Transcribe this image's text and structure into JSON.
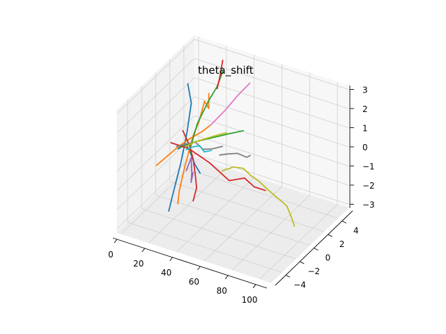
{
  "chart_data": {
    "type": "line",
    "projection": "3d",
    "title": "theta_shift",
    "xlabel": "",
    "ylabel": "",
    "zlabel": "",
    "grid": true,
    "legend": "none",
    "xlim": [
      -3,
      108
    ],
    "ylim": [
      -5.5,
      5.5
    ],
    "zlim": [
      -3.2,
      3.2
    ],
    "x_ticks": [
      0,
      20,
      40,
      60,
      80,
      100
    ],
    "y_ticks": [
      -4,
      -2,
      0,
      2,
      4
    ],
    "z_ticks": [
      -3,
      -2,
      -1,
      0,
      1,
      2,
      3
    ],
    "series": [
      {
        "color": "#1f77b4",
        "points": [
          [
            14,
            1.2,
            2.6
          ],
          [
            15,
            1.5,
            1.5
          ],
          [
            15,
            0.9,
            0.2
          ],
          [
            14,
            0.2,
            -1.2
          ],
          [
            13,
            -0.8,
            -2.6
          ],
          [
            14,
            -1.5,
            -3.1
          ]
        ]
      },
      {
        "color": "#1f77b4",
        "points": [
          [
            12,
            0.2,
            -0.5
          ],
          [
            16,
            0.6,
            -0.3
          ],
          [
            20,
            0.4,
            -0.6
          ],
          [
            25,
            0.0,
            -0.9
          ],
          [
            30,
            -0.2,
            -1.2
          ]
        ]
      },
      {
        "color": "#ff7f0e",
        "points": [
          [
            20,
            3.0,
            1.6
          ],
          [
            22,
            2.6,
            1.0
          ],
          [
            21,
            2.2,
            1.5
          ],
          [
            20,
            1.6,
            0.6
          ],
          [
            19,
            1.0,
            0.1
          ],
          [
            18,
            0.0,
            -1.2
          ],
          [
            18,
            -0.8,
            -2.2
          ],
          [
            18,
            -1.0,
            -2.8
          ]
        ]
      },
      {
        "color": "#ff7f0e",
        "points": [
          [
            0,
            -0.5,
            -1.4
          ],
          [
            6,
            -0.1,
            -0.9
          ],
          [
            12,
            0.3,
            -0.4
          ],
          [
            18,
            0.7,
            0.0
          ],
          [
            25,
            1.1,
            0.4
          ],
          [
            30,
            1.2,
            0.8
          ]
        ]
      },
      {
        "color": "#2ca02c",
        "points": [
          [
            26,
            3.8,
            2.6
          ],
          [
            25,
            3.2,
            2.0
          ],
          [
            24,
            2.2,
            1.6
          ],
          [
            22,
            1.0,
            0.8
          ],
          [
            21,
            0.2,
            -0.2
          ],
          [
            22,
            0.0,
            -0.4
          ]
        ]
      },
      {
        "color": "#2ca02c",
        "points": [
          [
            14,
            0.0,
            -0.3
          ],
          [
            24,
            0.4,
            0.1
          ],
          [
            34,
            0.8,
            0.4
          ],
          [
            44,
            1.2,
            0.7
          ],
          [
            52,
            1.6,
            0.9
          ]
        ]
      },
      {
        "color": "#d62728",
        "points": [
          [
            24,
            4.2,
            3.0
          ],
          [
            24,
            3.8,
            2.3
          ],
          [
            24,
            3.4,
            1.8
          ]
        ]
      },
      {
        "color": "#d62728",
        "points": [
          [
            14,
            0.5,
            0.4
          ],
          [
            20,
            0.3,
            -0.2
          ],
          [
            24,
            0.0,
            -0.7
          ],
          [
            28,
            -0.5,
            -1.2
          ],
          [
            31,
            -0.9,
            -1.7
          ],
          [
            30,
            -1.2,
            -2.3
          ]
        ]
      },
      {
        "color": "#d62728",
        "points": [
          [
            8,
            0.0,
            -0.2
          ],
          [
            20,
            0.2,
            -0.3
          ],
          [
            36,
            0.0,
            -0.6
          ],
          [
            52,
            -0.4,
            -1.0
          ],
          [
            62,
            -0.2,
            -0.7
          ],
          [
            70,
            -0.4,
            -0.9
          ],
          [
            78,
            -0.4,
            -0.9
          ]
        ]
      },
      {
        "color": "#9467bd",
        "points": [
          [
            20,
            -0.2,
            -1.3
          ],
          [
            23,
            -0.1,
            -0.6
          ],
          [
            25,
            -0.4,
            -1.2
          ],
          [
            26,
            -0.7,
            -1.6
          ],
          [
            27,
            -0.6,
            -1.1
          ]
        ]
      },
      {
        "color": "#e377c2",
        "points": [
          [
            28,
            1.7,
            0.6
          ],
          [
            34,
            2.5,
            1.2
          ],
          [
            40,
            3.2,
            1.9
          ],
          [
            46,
            3.7,
            2.5
          ]
        ]
      },
      {
        "color": "#7f7f7f",
        "points": [
          [
            12,
            0.0,
            -0.3
          ],
          [
            18,
            0.2,
            -0.1
          ],
          [
            24,
            0.3,
            0.1
          ],
          [
            30,
            0.2,
            -0.1
          ],
          [
            36,
            0.4,
            0.0
          ],
          [
            42,
            0.6,
            0.2
          ]
        ]
      },
      {
        "color": "#7f7f7f",
        "points": [
          [
            40,
            0.6,
            -0.3
          ],
          [
            46,
            0.6,
            -0.1
          ],
          [
            52,
            0.8,
            0.0
          ],
          [
            58,
            0.9,
            -0.1
          ],
          [
            60,
            1.0,
            0.0
          ]
        ]
      },
      {
        "color": "#bcbd22",
        "points": [
          [
            18,
            0.1,
            -0.2
          ],
          [
            24,
            0.4,
            0.1
          ],
          [
            30,
            0.7,
            0.3
          ],
          [
            36,
            1.0,
            0.5
          ],
          [
            42,
            1.2,
            0.7
          ]
        ]
      },
      {
        "color": "#bcbd22",
        "points": [
          [
            46,
            -0.2,
            -0.7
          ],
          [
            52,
            0.2,
            -0.5
          ],
          [
            58,
            0.4,
            -0.5
          ],
          [
            64,
            0.3,
            -0.7
          ],
          [
            70,
            0.2,
            -0.8
          ],
          [
            76,
            0.1,
            -1.0
          ],
          [
            82,
            -0.1,
            -1.1
          ],
          [
            88,
            -0.3,
            -1.2
          ],
          [
            94,
            -0.5,
            -1.3
          ],
          [
            100,
            -1.0,
            -1.6
          ],
          [
            104,
            -1.4,
            -1.8
          ]
        ]
      },
      {
        "color": "#17becf",
        "points": [
          [
            18,
            0.2,
            -0.4
          ],
          [
            22,
            0.3,
            -0.2
          ],
          [
            26,
            0.5,
            -0.1
          ],
          [
            30,
            0.4,
            -0.3
          ],
          [
            34,
            0.6,
            -0.2
          ]
        ]
      }
    ]
  }
}
